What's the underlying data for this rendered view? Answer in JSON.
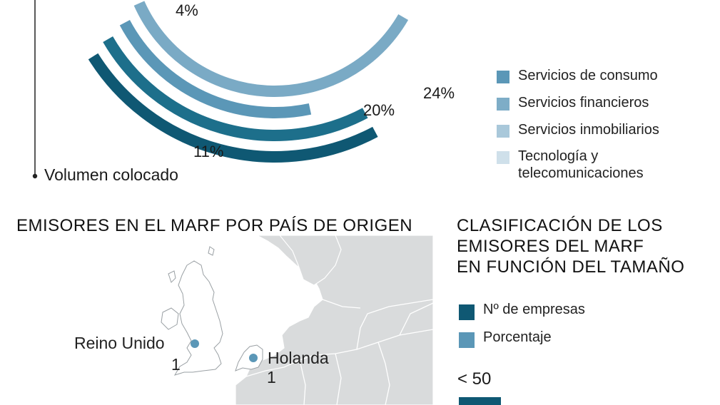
{
  "donut": {
    "chart_data": {
      "type": "pie",
      "series": [
        {
          "name": "Volumen colocado",
          "values": [
            4,
            20,
            24,
            11
          ]
        }
      ],
      "labels": [
        "4%",
        "20%",
        "24%",
        "11%"
      ]
    },
    "axis_label": "Volumen colocado",
    "legend": [
      {
        "label": "Servicios de consumo",
        "color": "#5b97b7"
      },
      {
        "label": "Servicios financieros",
        "color": "#7eadc7"
      },
      {
        "label": "Servicios inmobiliarios",
        "color": "#a9c8da"
      },
      {
        "label_line1": "Tecnología y",
        "label_line2": "telecomunicaciones",
        "color": "#cfe0ea"
      }
    ],
    "colors": {
      "dark": "#0f5873",
      "mid": "#1d6f8b",
      "light": "#7aaac5"
    }
  },
  "map_section": {
    "title": "EMISORES EN EL MARF POR PAÍS DE ORIGEN",
    "markers": [
      {
        "country": "Reino Unido",
        "value": "1"
      },
      {
        "country": "Holanda",
        "value": "1"
      }
    ]
  },
  "size_section": {
    "title_line1": "CLASIFICACIÓN DE LOS",
    "title_line2": "EMISORES DEL MARF",
    "title_line3": "EN FUNCIÓN DEL TAMAÑO",
    "legend": [
      {
        "label": "Nº de empresas",
        "color": "#0f5873"
      },
      {
        "label": "Porcentaje",
        "color": "#5b97b7"
      }
    ],
    "category": "< 50"
  }
}
